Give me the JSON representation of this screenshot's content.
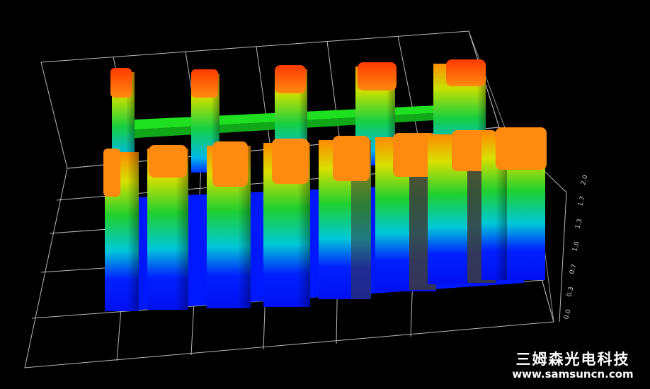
{
  "scene": {
    "background": "#000000",
    "grid_color": "#d8d8d8",
    "colormap": [
      "#0010ff",
      "#00c8e6",
      "#20e020",
      "#c8e000",
      "#ff9a00",
      "#ff3800"
    ],
    "z_ticks": [
      "0.0",
      "0.3",
      "0.7",
      "1.0",
      "1.3",
      "1.7",
      "2.0"
    ]
  },
  "watermark": {
    "chinese": "三姆森光电科技",
    "url": "www.samsuncn.com"
  }
}
